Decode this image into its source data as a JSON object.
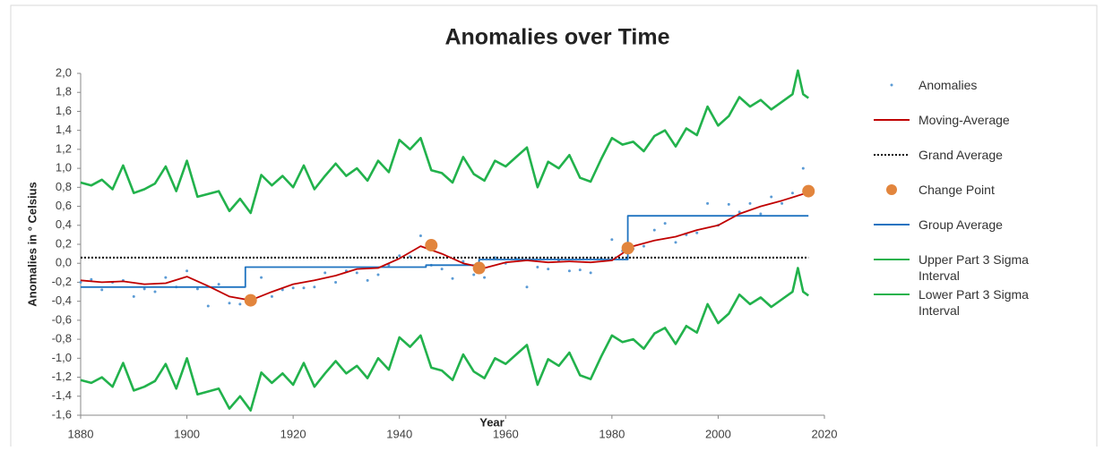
{
  "chart_data": {
    "type": "line",
    "title": "Anomalies over Time",
    "x_label": "Year",
    "y_label": "Anomalies in ° Celsius",
    "legend": "right",
    "xlim": [
      1880,
      2020
    ],
    "xticks": [
      1880,
      1900,
      1920,
      1940,
      1960,
      1980,
      2000,
      2020
    ],
    "ylim": [
      -1.6,
      2.0
    ],
    "yticks": [
      {
        "value": 2.0,
        "label": "2,0"
      },
      {
        "value": 1.8,
        "label": "1,8"
      },
      {
        "value": 1.6,
        "label": "1,6"
      },
      {
        "value": 1.4,
        "label": "1,4"
      },
      {
        "value": 1.2,
        "label": "1,2"
      },
      {
        "value": 1.0,
        "label": "1,0"
      },
      {
        "value": 0.8,
        "label": "0,8"
      },
      {
        "value": 0.6,
        "label": "0,6"
      },
      {
        "value": 0.4,
        "label": "0,4"
      },
      {
        "value": 0.2,
        "label": "0,2"
      },
      {
        "value": 0.0,
        "label": "0,0"
      },
      {
        "value": -0.2,
        "label": "-0,2"
      },
      {
        "value": -0.4,
        "label": "-0,4"
      },
      {
        "value": -0.6,
        "label": "-0,6"
      },
      {
        "value": -0.8,
        "label": "-0,8"
      },
      {
        "value": -1.0,
        "label": "-1,0"
      },
      {
        "value": -1.2,
        "label": "-1,2"
      },
      {
        "value": -1.4,
        "label": "-1,4"
      },
      {
        "value": -1.6,
        "label": "-1,6"
      }
    ],
    "series": [
      {
        "name": "Anomalies",
        "type": "scatter",
        "color": "#5b9bd5",
        "x": [
          1880,
          1882,
          1884,
          1886,
          1888,
          1890,
          1892,
          1894,
          1896,
          1898,
          1900,
          1902,
          1904,
          1906,
          1908,
          1910,
          1912,
          1914,
          1916,
          1918,
          1920,
          1922,
          1924,
          1926,
          1928,
          1930,
          1932,
          1934,
          1936,
          1938,
          1940,
          1942,
          1944,
          1946,
          1948,
          1950,
          1952,
          1954,
          1956,
          1958,
          1960,
          1962,
          1964,
          1966,
          1968,
          1970,
          1972,
          1974,
          1976,
          1978,
          1980,
          1982,
          1984,
          1986,
          1988,
          1990,
          1992,
          1994,
          1996,
          1998,
          2000,
          2002,
          2004,
          2006,
          2008,
          2010,
          2012,
          2014,
          2016
        ],
        "values": [
          -0.2,
          -0.17,
          -0.28,
          -0.2,
          -0.18,
          -0.35,
          -0.27,
          -0.3,
          -0.15,
          -0.25,
          -0.08,
          -0.27,
          -0.45,
          -0.22,
          -0.42,
          -0.43,
          -0.35,
          -0.15,
          -0.35,
          -0.28,
          -0.26,
          -0.26,
          -0.25,
          -0.1,
          -0.2,
          -0.08,
          -0.1,
          -0.18,
          -0.12,
          -0.02,
          0.08,
          0.07,
          0.29,
          -0.02,
          -0.06,
          -0.16,
          0.02,
          -0.12,
          -0.15,
          0.06,
          0.0,
          0.05,
          -0.25,
          -0.04,
          -0.06,
          0.03,
          -0.08,
          -0.07,
          -0.1,
          0.05,
          0.25,
          0.13,
          0.15,
          0.18,
          0.35,
          0.42,
          0.22,
          0.3,
          0.32,
          0.63,
          0.4,
          0.62,
          0.54,
          0.63,
          0.52,
          0.7,
          0.63,
          0.74,
          1.0
        ]
      },
      {
        "name": "Moving-Average",
        "type": "line",
        "color": "#c00000",
        "x": [
          1880,
          1884,
          1888,
          1892,
          1896,
          1900,
          1904,
          1908,
          1912,
          1916,
          1920,
          1924,
          1928,
          1932,
          1936,
          1940,
          1944,
          1948,
          1952,
          1956,
          1960,
          1964,
          1968,
          1972,
          1976,
          1980,
          1984,
          1988,
          1992,
          1996,
          2000,
          2004,
          2008,
          2012,
          2016,
          2017
        ],
        "values": [
          -0.18,
          -0.2,
          -0.19,
          -0.22,
          -0.21,
          -0.14,
          -0.24,
          -0.35,
          -0.39,
          -0.3,
          -0.22,
          -0.18,
          -0.13,
          -0.06,
          -0.05,
          0.05,
          0.18,
          0.1,
          0.0,
          -0.05,
          0.01,
          0.03,
          0.01,
          0.02,
          0.01,
          0.03,
          0.18,
          0.24,
          0.28,
          0.35,
          0.4,
          0.52,
          0.6,
          0.66,
          0.73,
          0.75
        ]
      },
      {
        "name": "Grand Average",
        "type": "line",
        "style": "dotted",
        "color": "#000000",
        "x": [
          1880,
          2017
        ],
        "values": [
          0.06,
          0.06
        ]
      },
      {
        "name": "Change Point",
        "type": "scatter",
        "marker": "big",
        "color": "#e2853d",
        "x": [
          1912,
          1946,
          1955,
          1983,
          2017
        ],
        "values": [
          -0.39,
          0.19,
          -0.05,
          0.16,
          0.76
        ]
      },
      {
        "name": "Group Average",
        "type": "line",
        "color": "#1f73c0",
        "x": [
          1880,
          1911,
          1911,
          1945,
          1945,
          1955,
          1955,
          1983,
          1983,
          2017
        ],
        "values": [
          -0.25,
          -0.25,
          -0.04,
          -0.04,
          -0.02,
          -0.02,
          0.04,
          0.04,
          0.5,
          0.5
        ]
      },
      {
        "name": "Upper Part 3 Sigma Interval",
        "type": "line",
        "color": "#22b24c",
        "x": [
          1880,
          1882,
          1884,
          1886,
          1888,
          1890,
          1892,
          1894,
          1896,
          1898,
          1900,
          1902,
          1904,
          1906,
          1908,
          1910,
          1912,
          1914,
          1916,
          1918,
          1920,
          1922,
          1924,
          1926,
          1928,
          1930,
          1932,
          1934,
          1936,
          1938,
          1940,
          1942,
          1944,
          1946,
          1948,
          1950,
          1952,
          1954,
          1956,
          1958,
          1960,
          1962,
          1964,
          1966,
          1968,
          1970,
          1972,
          1974,
          1976,
          1978,
          1980,
          1982,
          1984,
          1986,
          1988,
          1990,
          1992,
          1994,
          1996,
          1998,
          2000,
          2002,
          2004,
          2006,
          2008,
          2010,
          2012,
          2014,
          2015,
          2016,
          2017
        ],
        "values": [
          0.85,
          0.82,
          0.88,
          0.78,
          1.03,
          0.74,
          0.78,
          0.84,
          1.02,
          0.76,
          1.08,
          0.7,
          0.73,
          0.76,
          0.55,
          0.68,
          0.53,
          0.93,
          0.82,
          0.92,
          0.8,
          1.03,
          0.78,
          0.92,
          1.05,
          0.92,
          1.0,
          0.87,
          1.08,
          0.96,
          1.3,
          1.2,
          1.32,
          0.98,
          0.95,
          0.85,
          1.12,
          0.94,
          0.87,
          1.08,
          1.02,
          1.12,
          1.22,
          0.8,
          1.07,
          1.0,
          1.14,
          0.9,
          0.86,
          1.1,
          1.32,
          1.25,
          1.28,
          1.18,
          1.34,
          1.4,
          1.23,
          1.42,
          1.35,
          1.65,
          1.45,
          1.55,
          1.75,
          1.65,
          1.72,
          1.62,
          1.7,
          1.78,
          2.03,
          1.78,
          1.74
        ]
      },
      {
        "name": "Lower Part 3 Sigma Interval",
        "type": "line",
        "color": "#22b24c",
        "x": [
          1880,
          1882,
          1884,
          1886,
          1888,
          1890,
          1892,
          1894,
          1896,
          1898,
          1900,
          1902,
          1904,
          1906,
          1908,
          1910,
          1912,
          1914,
          1916,
          1918,
          1920,
          1922,
          1924,
          1926,
          1928,
          1930,
          1932,
          1934,
          1936,
          1938,
          1940,
          1942,
          1944,
          1946,
          1948,
          1950,
          1952,
          1954,
          1956,
          1958,
          1960,
          1962,
          1964,
          1966,
          1968,
          1970,
          1972,
          1974,
          1976,
          1978,
          1980,
          1982,
          1984,
          1986,
          1988,
          1990,
          1992,
          1994,
          1996,
          1998,
          2000,
          2002,
          2004,
          2006,
          2008,
          2010,
          2012,
          2014,
          2015,
          2016,
          2017
        ],
        "values": [
          -1.23,
          -1.26,
          -1.2,
          -1.3,
          -1.05,
          -1.34,
          -1.3,
          -1.24,
          -1.06,
          -1.32,
          -1.0,
          -1.38,
          -1.35,
          -1.32,
          -1.53,
          -1.4,
          -1.55,
          -1.15,
          -1.26,
          -1.16,
          -1.28,
          -1.05,
          -1.3,
          -1.16,
          -1.03,
          -1.16,
          -1.08,
          -1.21,
          -1.0,
          -1.12,
          -0.78,
          -0.88,
          -0.76,
          -1.1,
          -1.13,
          -1.23,
          -0.96,
          -1.14,
          -1.21,
          -1.0,
          -1.06,
          -0.96,
          -0.86,
          -1.28,
          -1.01,
          -1.08,
          -0.94,
          -1.18,
          -1.22,
          -0.98,
          -0.76,
          -0.83,
          -0.8,
          -0.9,
          -0.74,
          -0.68,
          -0.85,
          -0.66,
          -0.73,
          -0.43,
          -0.63,
          -0.53,
          -0.33,
          -0.43,
          -0.36,
          -0.46,
          -0.38,
          -0.3,
          -0.05,
          -0.3,
          -0.34
        ]
      }
    ]
  }
}
